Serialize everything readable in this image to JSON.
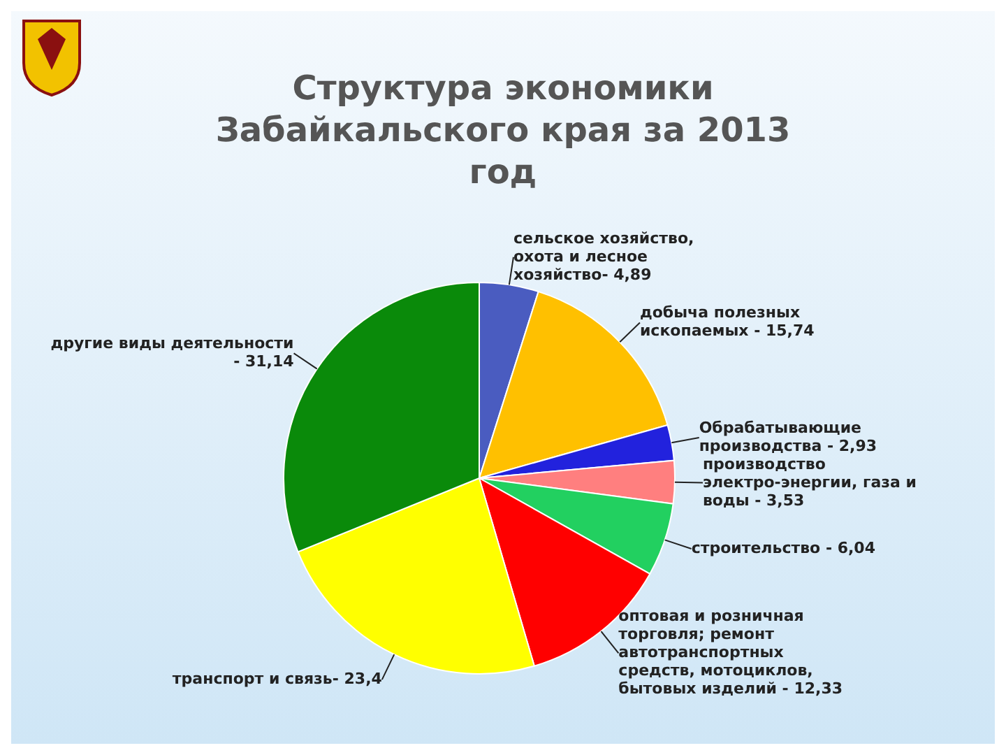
{
  "chart_data": {
    "type": "pie",
    "title": "Структура экономики Забайкальского края за 2013 год",
    "categories": [
      "сельское хозяйство, охота и лесное хозяйство-",
      "добыча полезных ископаемых -",
      "Обрабатывающие производства -",
      "производство электро-энергии, газа и воды -",
      "строительство -",
      "оптовая и розничная торговля; ремонт автотранспортных средств, мотоциклов, бытовых изделий -",
      "транспорт и связь-",
      "другие виды деятельности -"
    ],
    "values": [
      4.89,
      15.74,
      2.93,
      3.53,
      6.04,
      12.33,
      23.4,
      31.14
    ],
    "value_labels": [
      "4,89",
      "15,74",
      "2,93",
      "3,53",
      "6,04",
      "12,33",
      "23,4",
      "31,14"
    ],
    "colors": [
      "#4a5cc0",
      "#ffc000",
      "#2222dd",
      "#ff7f7f",
      "#22d060",
      "#ff0000",
      "#ffff00",
      "#0a8a0a"
    ]
  }
}
